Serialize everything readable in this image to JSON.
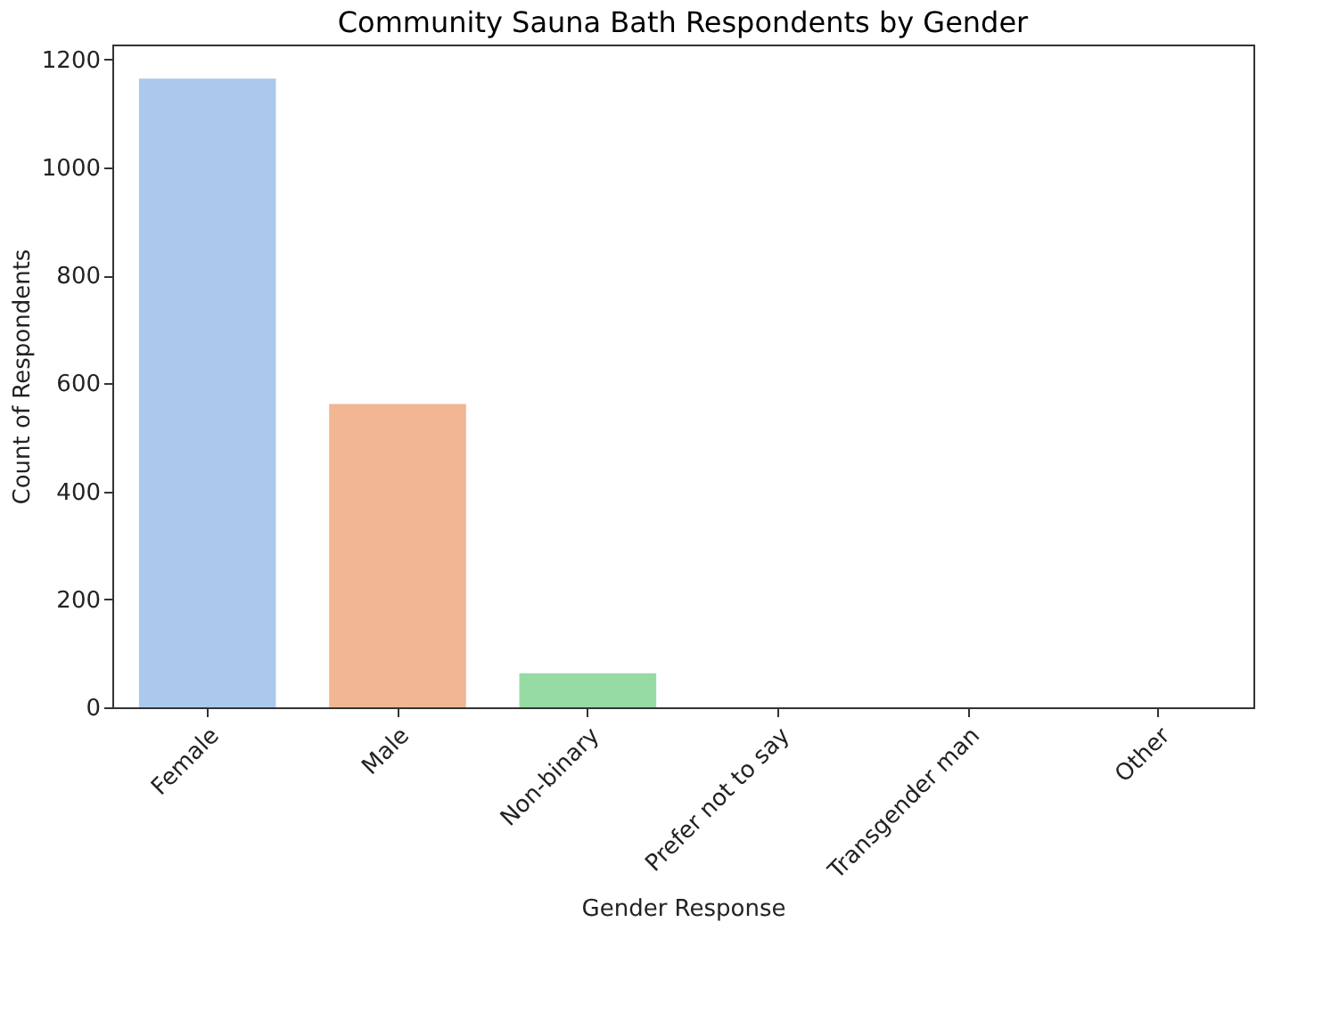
{
  "chart_data": {
    "type": "bar",
    "title": "Community Sauna Bath Respondents by Gender",
    "xlabel": "Gender Response",
    "ylabel": "Count of Respondents",
    "categories": [
      "Female",
      "Male",
      "Non-binary",
      "Prefer not to say",
      "Transgender man",
      "Other"
    ],
    "values": [
      1165,
      562,
      63,
      0,
      0,
      0
    ],
    "colors": [
      "#abc9ec",
      "#f0b792",
      "#96dba4",
      "#ff9f9b",
      "#d0bbff",
      "#debb9b"
    ],
    "ylim": [
      0,
      1228
    ],
    "yticks": [
      0,
      200,
      400,
      600,
      800,
      1000,
      1200
    ],
    "grid": false,
    "legend": false
  }
}
